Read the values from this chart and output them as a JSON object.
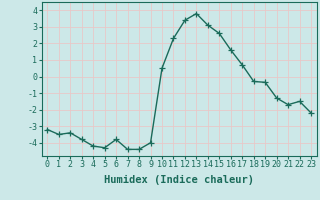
{
  "x": [
    0,
    1,
    2,
    3,
    4,
    5,
    6,
    7,
    8,
    9,
    10,
    11,
    12,
    13,
    14,
    15,
    16,
    17,
    18,
    19,
    20,
    21,
    22,
    23
  ],
  "y": [
    -3.2,
    -3.5,
    -3.4,
    -3.8,
    -4.2,
    -4.3,
    -3.8,
    -4.4,
    -4.4,
    -4.0,
    0.5,
    2.3,
    3.4,
    3.8,
    3.1,
    2.6,
    1.6,
    0.7,
    -0.3,
    -0.35,
    -1.3,
    -1.7,
    -1.5,
    -2.2
  ],
  "line_color": "#1a6b5a",
  "marker": "+",
  "markersize": 4,
  "linewidth": 1.0,
  "bg_color": "#cce8e8",
  "grid_color": "#e8c8c8",
  "xlabel": "Humidex (Indice chaleur)",
  "ylim": [
    -4.8,
    4.5
  ],
  "xlim": [
    -0.5,
    23.5
  ],
  "yticks": [
    -4,
    -3,
    -2,
    -1,
    0,
    1,
    2,
    3,
    4
  ],
  "xticks": [
    0,
    1,
    2,
    3,
    4,
    5,
    6,
    7,
    8,
    9,
    10,
    11,
    12,
    13,
    14,
    15,
    16,
    17,
    18,
    19,
    20,
    21,
    22,
    23
  ],
  "tick_fontsize": 6,
  "xlabel_fontsize": 7.5,
  "tick_color": "#1a6b5a",
  "axis_color": "#1a6b5a"
}
